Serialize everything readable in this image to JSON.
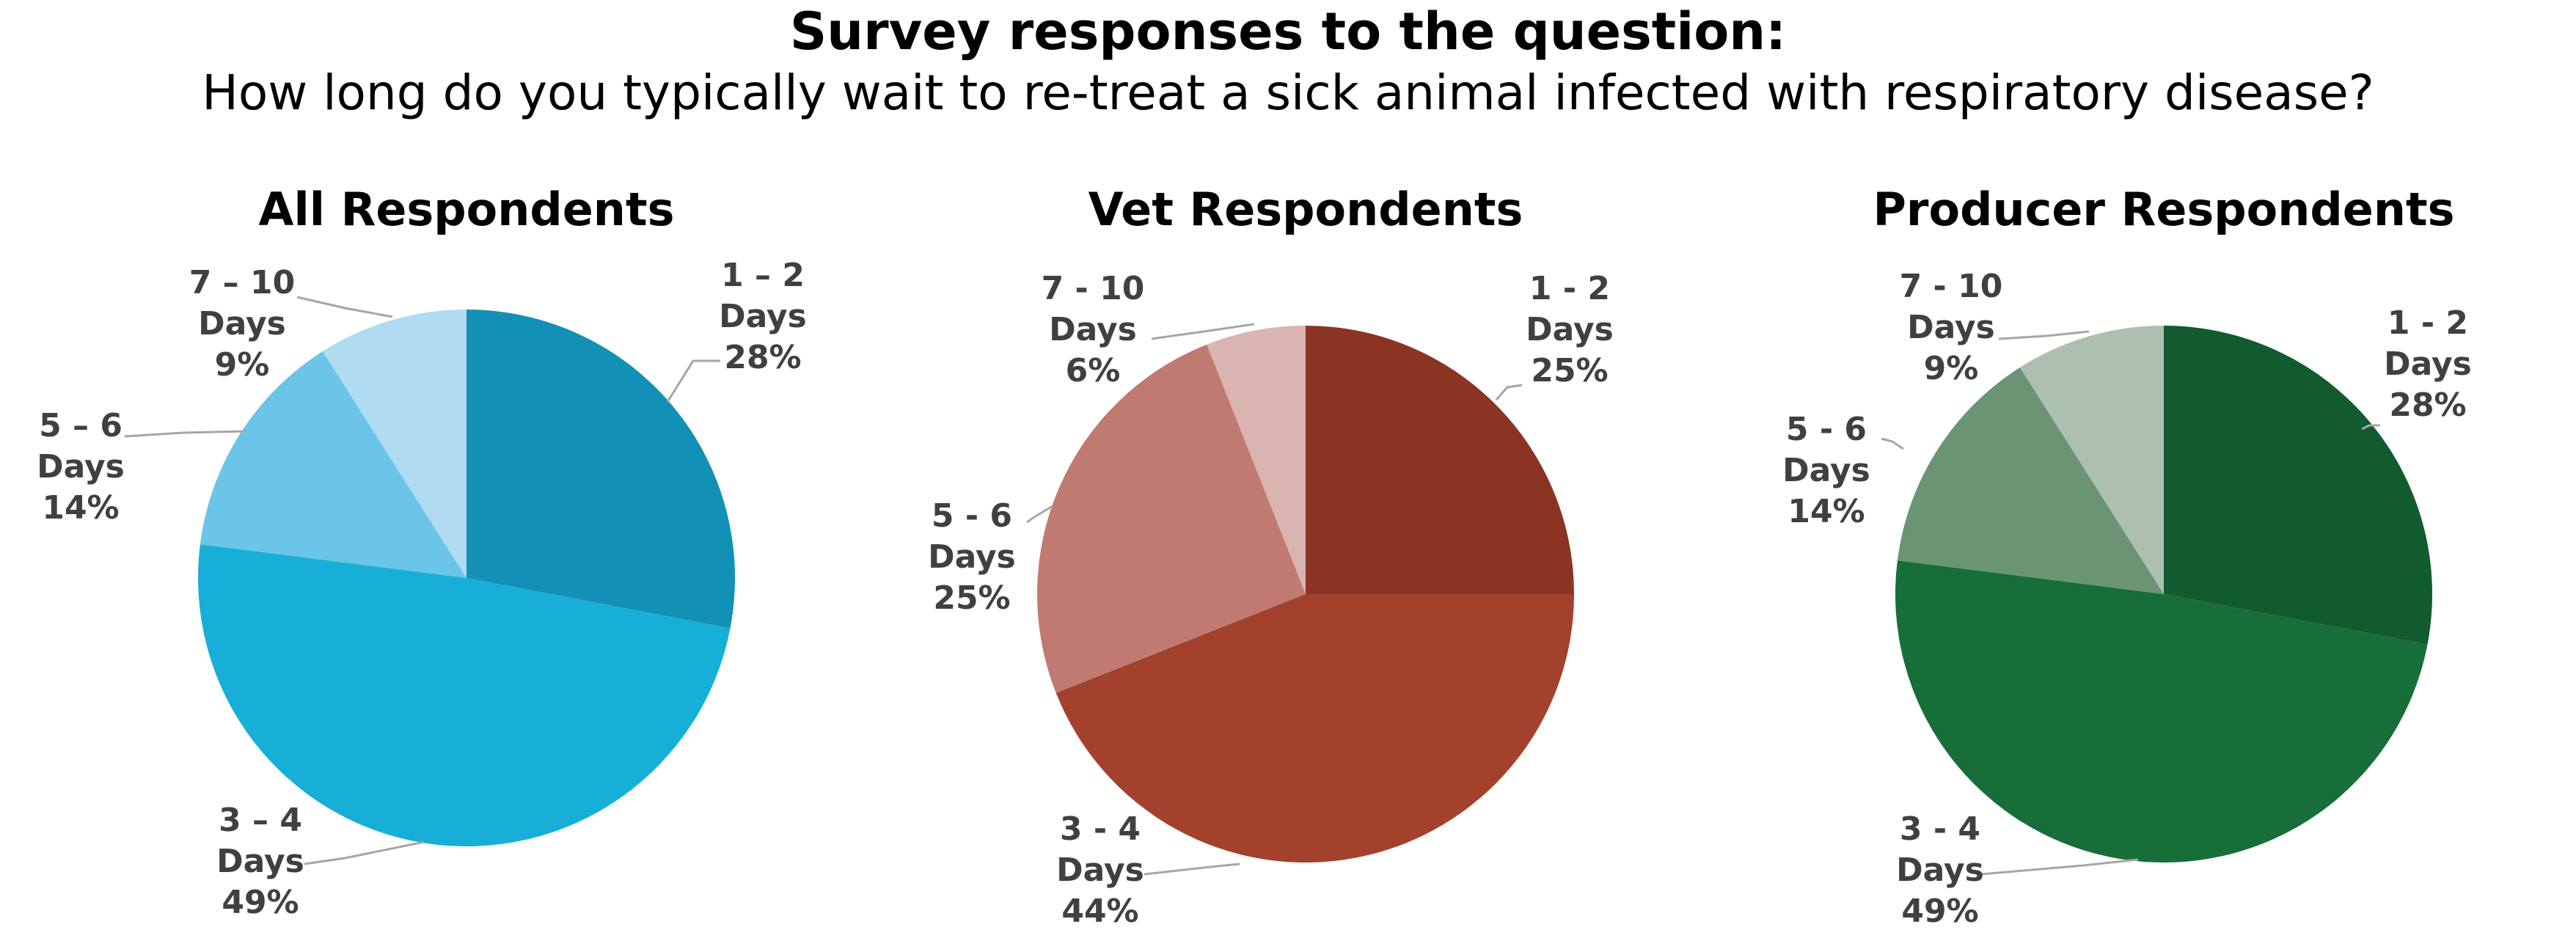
{
  "title": {
    "line1": "Survey responses to the question:",
    "line2": "How long do you typically wait to re-treat a sick animal infected with respiratory disease?"
  },
  "chart_data": [
    {
      "type": "pie",
      "title": "All Respondents",
      "categories": [
        "1 – 2 Days",
        "3 – 4 Days",
        "5 – 6 Days",
        "7 – 10 Days"
      ],
      "values": [
        28,
        49,
        14,
        9
      ],
      "unit": "%",
      "colors": [
        "#1390b5",
        "#17afd8",
        "#6bc5e8",
        "#b0dbf1"
      ],
      "labels": [
        {
          "lines": [
            "1 – 2",
            "Days",
            "28%"
          ]
        },
        {
          "lines": [
            "3 – 4",
            "Days",
            "49%"
          ]
        },
        {
          "lines": [
            "5 – 6",
            "Days",
            "14%"
          ]
        },
        {
          "lines": [
            "7 – 10",
            "Days",
            "9%"
          ]
        }
      ]
    },
    {
      "type": "pie",
      "title": "Vet Respondents",
      "categories": [
        "1 - 2 Days",
        "3 - 4 Days",
        "5 - 6 Days",
        "7 - 10 Days"
      ],
      "values": [
        25,
        44,
        25,
        6
      ],
      "unit": "%",
      "colors": [
        "#8b3424",
        "#a3412d",
        "#c07a71",
        "#d9b4b0"
      ],
      "labels": [
        {
          "lines": [
            "1 - 2",
            "Days",
            "25%"
          ]
        },
        {
          "lines": [
            "3 - 4",
            "Days",
            "44%"
          ]
        },
        {
          "lines": [
            "5 - 6",
            "Days",
            "25%"
          ]
        },
        {
          "lines": [
            "7 - 10",
            "Days",
            "6%"
          ]
        }
      ]
    },
    {
      "type": "pie",
      "title": "Producer Respondents",
      "categories": [
        "1 - 2 Days",
        "3 - 4 Days",
        "5 - 6 Days",
        "7 - 10 Days"
      ],
      "values": [
        28,
        49,
        14,
        9
      ],
      "unit": "%",
      "colors": [
        "#115b2f",
        "#176e38",
        "#6b9474",
        "#adbfb0"
      ],
      "labels": [
        {
          "lines": [
            "1 - 2",
            "Days",
            "28%"
          ]
        },
        {
          "lines": [
            "3 - 4",
            "Days",
            "49%"
          ]
        },
        {
          "lines": [
            "5 - 6",
            "Days",
            "14%"
          ]
        },
        {
          "lines": [
            "7 - 10",
            "Days",
            "9%"
          ]
        }
      ]
    }
  ]
}
